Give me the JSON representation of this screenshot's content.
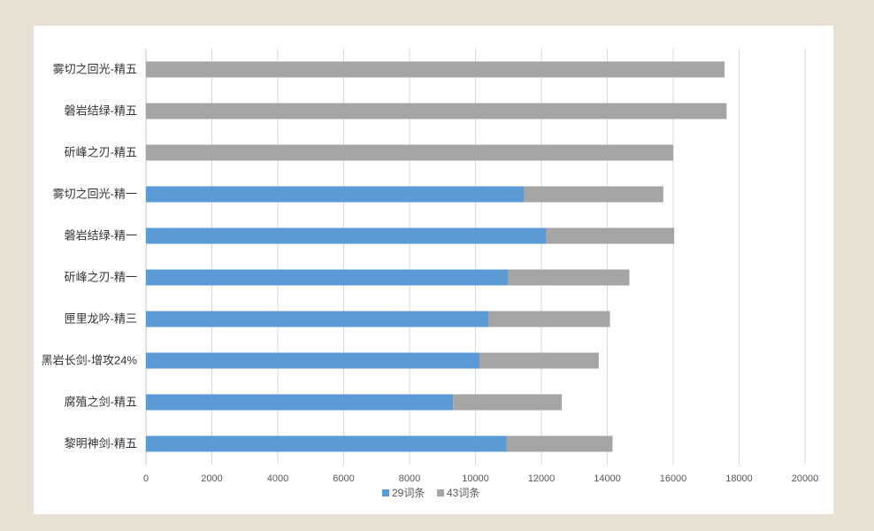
{
  "chart_data": {
    "type": "bar",
    "orientation": "horizontal",
    "stacked": true,
    "title": "",
    "xlabel": "",
    "ylabel": "",
    "categories": [
      "雾切之回光-精五",
      "磐岩结绿-精五",
      "斫峰之刃-精五",
      "雾切之回光-精一",
      "磐岩结绿-精一",
      "斫峰之刃-精一",
      "匣里龙吟-精三",
      "黑岩长剑-增攻24%",
      "腐殖之剑-精五",
      "黎明神剑-精五"
    ],
    "series": [
      {
        "name": "29词条",
        "color": "#5b9bd5",
        "values": [
          0,
          0,
          0,
          11480,
          12150,
          11000,
          10400,
          10130,
          9320,
          10950
        ]
      },
      {
        "name": "43词条",
        "color": "#a5a5a5",
        "values": [
          17560,
          17620,
          16000,
          4220,
          3880,
          3670,
          3680,
          3610,
          3300,
          3210
        ]
      }
    ],
    "xlim": [
      0,
      20000
    ],
    "xticks": [
      0,
      2000,
      4000,
      6000,
      8000,
      10000,
      12000,
      14000,
      16000,
      18000,
      20000
    ],
    "grid": true,
    "legend": "bottom"
  }
}
